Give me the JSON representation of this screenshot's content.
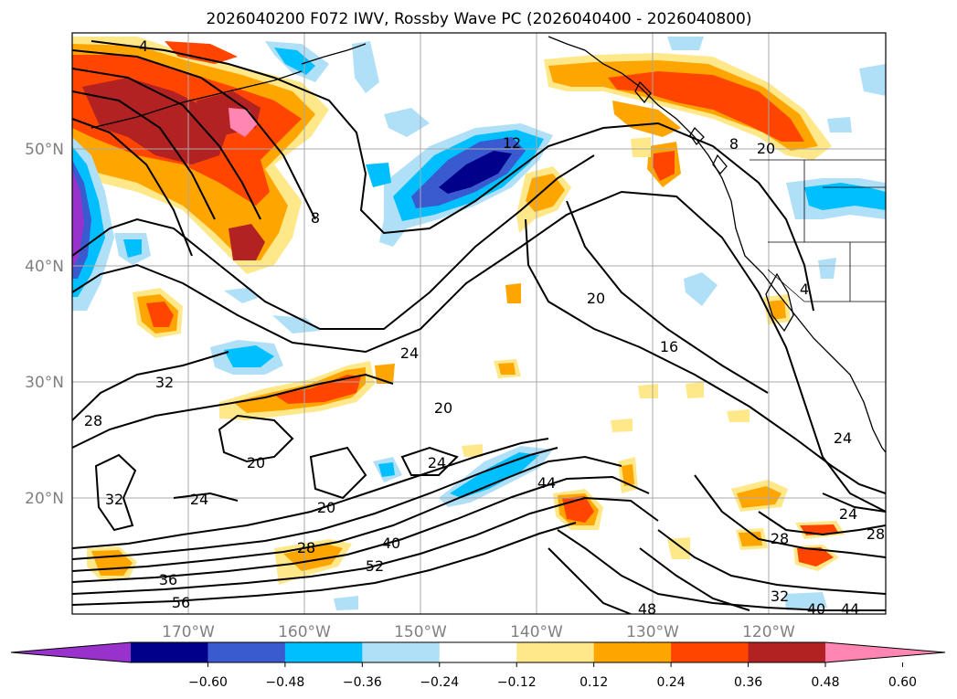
{
  "title": "2026040200 F072 IWV, Rossby Wave PC (2026040400 - 2026040800)",
  "lat_labels": [
    "50°N",
    "40°N",
    "30°N",
    "20°N"
  ],
  "lon_labels": [
    "170°W",
    "160°W",
    "150°W",
    "140°W",
    "130°W",
    "120°W"
  ],
  "colorbar": {
    "colors": [
      "#9932cc",
      "#00008b",
      "#3a5bcf",
      "#00bfff",
      "#b0e0f8",
      "#ffffff",
      "#ffe88a",
      "#ffa500",
      "#ff4500",
      "#b22222",
      "#ff85b3"
    ],
    "tick_labels": [
      "−0.60",
      "−0.48",
      "−0.36",
      "−0.24",
      "−0.12",
      "0.12",
      "0.24",
      "0.36",
      "0.48",
      "0.60"
    ]
  },
  "contour_labels": [
    "4",
    "8",
    "8",
    "12",
    "20",
    "16",
    "4",
    "32",
    "28",
    "20",
    "24",
    "20",
    "24",
    "20",
    "24",
    "28",
    "36",
    "40",
    "52",
    "56",
    "44",
    "32",
    "40",
    "44",
    "48",
    "28",
    "24",
    "24",
    "28",
    "32",
    "20"
  ],
  "colors": {
    "neg_strong": "#00008b",
    "neg_mid": "#3a5bcf",
    "neg_light": "#00bfff",
    "neg_pale": "#b0e0f8",
    "pos_pale": "#ffe88a",
    "pos_light": "#ffa500",
    "pos_mid": "#ff4500",
    "pos_strong": "#b22222",
    "pos_max": "#ff85b3",
    "violet": "#9932cc"
  }
}
